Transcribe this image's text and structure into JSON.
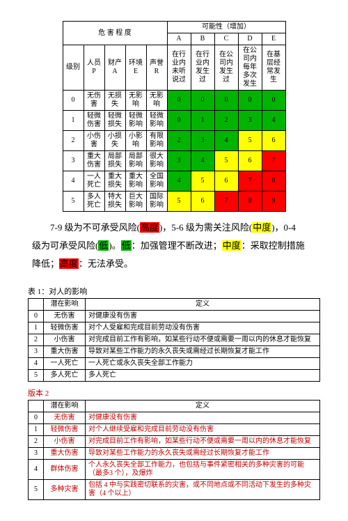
{
  "matrix": {
    "header_hazard": "危 害 程 度",
    "header_prob": "可能性（增加）",
    "col_labels": [
      "A",
      "B",
      "C",
      "D",
      "E"
    ],
    "col_descs": [
      "在行业内未听说过",
      "在行业内发生过",
      "在公司内发生过",
      "在公司内每年多次发生",
      "在基层经常发生"
    ],
    "row_header_labels": [
      "级别",
      "人员 P",
      "财产 A",
      "环境 E",
      "声誉 R"
    ],
    "rows": [
      {
        "lvl": "0",
        "p": "无伤害",
        "a": "无损失",
        "e": "无影响",
        "r": "无影响",
        "cells": [
          {
            "v": "0",
            "c": "green"
          },
          {
            "v": "0",
            "c": "green"
          },
          {
            "v": "0",
            "c": "green"
          },
          {
            "v": "0",
            "c": "green"
          },
          {
            "v": "0",
            "c": "green"
          }
        ]
      },
      {
        "lvl": "1",
        "p": "轻微伤害",
        "a": "轻微损失",
        "e": "轻微影响",
        "r": "轻微影响",
        "cells": [
          {
            "v": "0",
            "c": "green"
          },
          {
            "v": "1",
            "c": "green"
          },
          {
            "v": "2",
            "c": "green"
          },
          {
            "v": "3",
            "c": "green"
          },
          {
            "v": "4",
            "c": "green"
          }
        ]
      },
      {
        "lvl": "2",
        "p": "小伤害",
        "a": "小损失",
        "e": "小影响",
        "r": "有限影响",
        "cells": [
          {
            "v": "2",
            "c": "green"
          },
          {
            "v": "3",
            "c": "green"
          },
          {
            "v": "4",
            "c": "green"
          },
          {
            "v": "5",
            "c": "yellow"
          },
          {
            "v": "6",
            "c": "yellow"
          }
        ]
      },
      {
        "lvl": "3",
        "p": "重大伤害",
        "a": "局部损失",
        "e": "局部影响",
        "r": "很大影响",
        "cells": [
          {
            "v": "3",
            "c": "green"
          },
          {
            "v": "4",
            "c": "green"
          },
          {
            "v": "5",
            "c": "yellow"
          },
          {
            "v": "6",
            "c": "yellow"
          },
          {
            "v": "7",
            "c": "red"
          }
        ]
      },
      {
        "lvl": "4",
        "p": "一人死亡",
        "a": "重大损失",
        "e": "重大影响",
        "r": "全国影响",
        "cells": [
          {
            "v": "4",
            "c": "green"
          },
          {
            "v": "5",
            "c": "yellow"
          },
          {
            "v": "6",
            "c": "yellow"
          },
          {
            "v": "7",
            "c": "red"
          },
          {
            "v": "8",
            "c": "red"
          }
        ]
      },
      {
        "lvl": "5",
        "p": "多人死亡",
        "a": "特大损失",
        "e": "巨大影响",
        "r": "国际影响",
        "cells": [
          {
            "v": "5",
            "c": "yellow"
          },
          {
            "v": "6",
            "c": "yellow"
          },
          {
            "v": "7",
            "c": "red"
          },
          {
            "v": "8",
            "c": "red"
          },
          {
            "v": "9",
            "c": "red"
          }
        ]
      }
    ]
  },
  "legend": {
    "t1a": "7-9 级为不可承受风险(",
    "h1": "高度",
    "t1b": ")，5-6 级为需关注风险(",
    "h2": "中度",
    "t1c": ")，0-4",
    "t2a": "级为可承受风险(",
    "h3": "低",
    "t2b": ")。",
    "h4": "低",
    "t2c": "：加强管理不断改进；",
    "h5": "中度",
    "t2d": "：采取控制措施",
    "t3a": "降低；",
    "h6": "高度",
    "t3b": "：无法承受。"
  },
  "impact1": {
    "title": "表 1：对人的影响",
    "h1": "潜在影响",
    "h2": "定义",
    "rows": [
      {
        "n": "0",
        "lvl": "无伤害",
        "def": "对健康没有伤害"
      },
      {
        "n": "1",
        "lvl": "轻微伤害",
        "def": "对个人受雇和完成目前劳动没有伤害"
      },
      {
        "n": "2",
        "lvl": "小伤害",
        "def": "对完成目前工作有影响，如某些行动不便或需要一周以内的休息才能恢复"
      },
      {
        "n": "3",
        "lvl": "重大伤害",
        "def": "导致对某些工作能力的永久丧失或需经过长期恢复才能工作"
      },
      {
        "n": "4",
        "lvl": "一人死亡",
        "def": "一人死亡或永久丧失全部工作能力"
      },
      {
        "n": "5",
        "lvl": "多人死亡",
        "def": "多人死亡"
      }
    ]
  },
  "impact2": {
    "title": "版本 2",
    "h1": "潜在影响",
    "h2": "定义",
    "rows": [
      {
        "n": "0",
        "lvl": "无伤害",
        "def": "对健康没有伤害"
      },
      {
        "n": "1",
        "lvl": "轻微伤害",
        "def": "对个人继续受雇和完成目前劳动没有伤害"
      },
      {
        "n": "2",
        "lvl": "小伤害",
        "def": "对完成目前工作有影响，如某些行动不便或需要一周以内的休息才能恢复"
      },
      {
        "n": "3",
        "lvl": "重大伤害",
        "def": "导致对某些工作能力的永久丧失或需经过长期恢复才能工作"
      },
      {
        "n": "4",
        "lvl": "群体伤害",
        "def": "个人永久丧失全部工作能力，也包括与事件紧密相关的多种灾害的可能（最多3 个），及爆炸"
      },
      {
        "n": "5",
        "lvl": "多种灾害",
        "def": "包括 4 中与实践密切联系的灾害，或不同地点或不同活动下发生的多种灾害（4 个以上）"
      }
    ]
  }
}
